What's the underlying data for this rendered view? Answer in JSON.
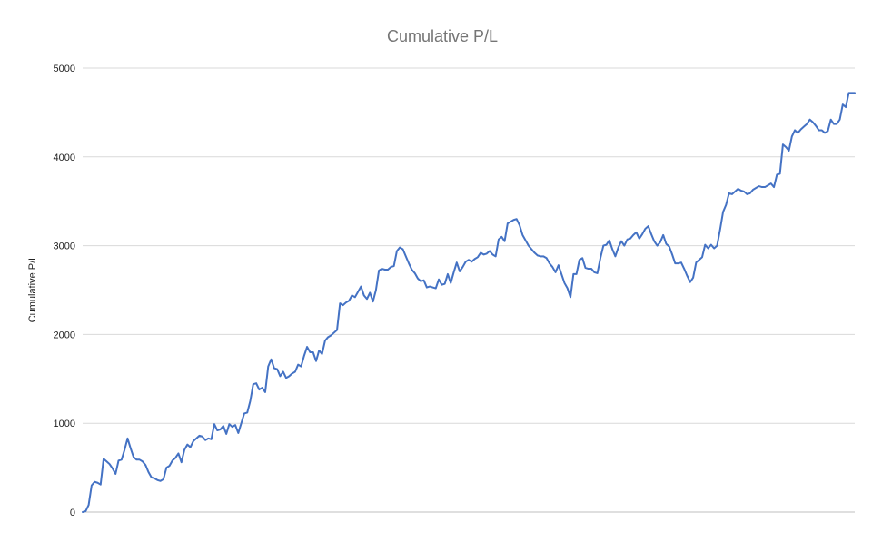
{
  "chart_data": {
    "type": "line",
    "title": "Cumulative P/L",
    "xlabel": "",
    "ylabel": "Cumulative P/L",
    "ylim": [
      0,
      5000
    ],
    "yticks": [
      0,
      1000,
      2000,
      3000,
      4000,
      5000
    ],
    "grid": true,
    "legend": "none",
    "colors": {
      "line": "#4472C4",
      "grid": "#d9d9d9",
      "axis": "#bfbfbf"
    },
    "series": [
      {
        "values": [
          0,
          10,
          80,
          300,
          340,
          330,
          310,
          600,
          570,
          540,
          490,
          430,
          580,
          590,
          700,
          830,
          720,
          620,
          590,
          590,
          570,
          530,
          450,
          390,
          380,
          360,
          350,
          370,
          500,
          520,
          580,
          610,
          660,
          560,
          700,
          760,
          730,
          800,
          830,
          860,
          850,
          810,
          830,
          820,
          990,
          920,
          930,
          970,
          880,
          990,
          960,
          980,
          890,
          1000,
          1110,
          1120,
          1250,
          1440,
          1450,
          1380,
          1400,
          1350,
          1640,
          1720,
          1620,
          1610,
          1530,
          1580,
          1510,
          1530,
          1560,
          1580,
          1660,
          1640,
          1760,
          1860,
          1800,
          1800,
          1700,
          1820,
          1780,
          1930,
          1970,
          1990,
          2020,
          2050,
          2350,
          2330,
          2360,
          2380,
          2440,
          2420,
          2480,
          2540,
          2440,
          2400,
          2470,
          2370,
          2500,
          2720,
          2740,
          2730,
          2730,
          2760,
          2770,
          2940,
          2980,
          2960,
          2880,
          2800,
          2730,
          2690,
          2630,
          2600,
          2610,
          2530,
          2540,
          2530,
          2520,
          2620,
          2560,
          2570,
          2680,
          2580,
          2700,
          2810,
          2710,
          2760,
          2820,
          2840,
          2820,
          2850,
          2870,
          2920,
          2900,
          2910,
          2940,
          2900,
          2880,
          3070,
          3100,
          3050,
          3250,
          3270,
          3290,
          3300,
          3230,
          3120,
          3060,
          3000,
          2960,
          2920,
          2890,
          2880,
          2880,
          2860,
          2800,
          2760,
          2700,
          2780,
          2680,
          2580,
          2520,
          2420,
          2680,
          2680,
          2840,
          2860,
          2750,
          2740,
          2740,
          2700,
          2690,
          2860,
          3000,
          3010,
          3060,
          2960,
          2880,
          2980,
          3050,
          3000,
          3070,
          3080,
          3120,
          3150,
          3080,
          3130,
          3190,
          3220,
          3130,
          3050,
          3000,
          3040,
          3120,
          3020,
          2990,
          2900,
          2800,
          2800,
          2810,
          2740,
          2660,
          2590,
          2640,
          2810,
          2840,
          2870,
          3010,
          2970,
          3010,
          2970,
          3000,
          3180,
          3380,
          3460,
          3590,
          3580,
          3610,
          3640,
          3620,
          3610,
          3580,
          3590,
          3630,
          3650,
          3670,
          3660,
          3660,
          3680,
          3700,
          3660,
          3800,
          3810,
          4140,
          4110,
          4070,
          4230,
          4300,
          4270,
          4310,
          4340,
          4370,
          4420,
          4390,
          4350,
          4300,
          4300,
          4270,
          4290,
          4420,
          4370,
          4370,
          4420,
          4590,
          4560,
          4720,
          4720,
          4720
        ]
      }
    ]
  }
}
